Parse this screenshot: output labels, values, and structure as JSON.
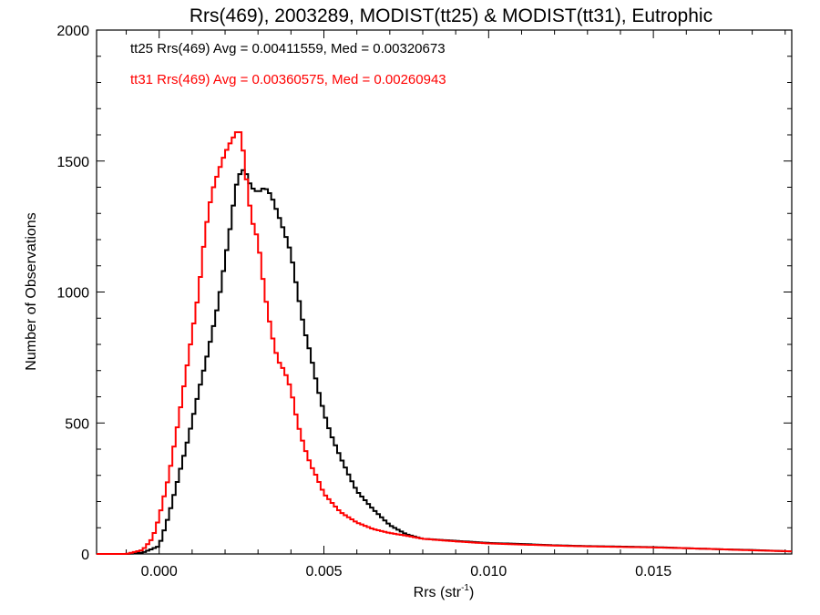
{
  "chart_data": {
    "type": "histogram",
    "title": "Rrs(469), 2003289, MODIST(tt25) & MODIST(tt31), Eutrophic",
    "xlabel": {
      "base": "Rrs (str",
      "sup": "-1",
      "close": ")"
    },
    "ylabel": "Number of Observations",
    "xlim": [
      -0.0019,
      0.0192
    ],
    "ylim": [
      0,
      2000
    ],
    "xticks": [
      0.0,
      0.005,
      0.01,
      0.015
    ],
    "xtick_labels": [
      "0.000",
      "0.005",
      "0.010",
      "0.015"
    ],
    "yticks": [
      0,
      500,
      1000,
      1500,
      2000
    ],
    "ytick_labels": [
      "0",
      "500",
      "1000",
      "1500",
      "2000"
    ],
    "grid": false,
    "annotations": [
      {
        "text": "tt25 Rrs(469) Avg = 0.00411559, Med = 0.00320673",
        "color": "#000000"
      },
      {
        "text": "tt31 Rrs(469) Avg = 0.00360575, Med = 0.00260943",
        "color": "#ff0000"
      }
    ],
    "series": [
      {
        "name": "tt25",
        "color": "#000000",
        "x": [
          -0.0019,
          -0.001,
          -0.0005,
          0.0,
          0.0003,
          0.0006,
          0.0009,
          0.0012,
          0.0015,
          0.0018,
          0.002,
          0.0022,
          0.0023,
          0.0024,
          0.0025,
          0.0026,
          0.0027,
          0.0028,
          0.003,
          0.0032,
          0.0034,
          0.0036,
          0.0038,
          0.004,
          0.0042,
          0.0044,
          0.0046,
          0.0048,
          0.005,
          0.0052,
          0.0055,
          0.0058,
          0.006,
          0.0065,
          0.007,
          0.0075,
          0.008,
          0.009,
          0.01,
          0.011,
          0.012,
          0.013,
          0.014,
          0.015,
          0.016,
          0.017,
          0.018,
          0.0192
        ],
        "y": [
          0,
          0,
          5,
          30,
          150,
          300,
          450,
          620,
          780,
          960,
          1120,
          1280,
          1380,
          1440,
          1460,
          1470,
          1430,
          1400,
          1380,
          1400,
          1370,
          1300,
          1230,
          1150,
          1000,
          860,
          760,
          640,
          540,
          460,
          370,
          290,
          240,
          170,
          110,
          75,
          58,
          50,
          42,
          38,
          33,
          30,
          28,
          26,
          22,
          18,
          15,
          10
        ]
      },
      {
        "name": "tt31",
        "color": "#ff0000",
        "x": [
          -0.0019,
          -0.001,
          -0.0005,
          -0.0002,
          0.0,
          0.0003,
          0.0006,
          0.0009,
          0.0012,
          0.0014,
          0.0016,
          0.0018,
          0.002,
          0.0022,
          0.0024,
          0.0025,
          0.0026,
          0.0028,
          0.003,
          0.0032,
          0.0034,
          0.0036,
          0.0038,
          0.004,
          0.0042,
          0.0044,
          0.0046,
          0.0048,
          0.005,
          0.0055,
          0.006,
          0.0065,
          0.007,
          0.0075,
          0.008,
          0.009,
          0.01,
          0.011,
          0.012,
          0.013,
          0.014,
          0.015,
          0.016,
          0.017,
          0.018,
          0.0192
        ],
        "y": [
          0,
          0,
          15,
          60,
          140,
          300,
          520,
          760,
          1000,
          1230,
          1380,
          1460,
          1530,
          1580,
          1620,
          1600,
          1480,
          1280,
          1200,
          1000,
          850,
          740,
          700,
          630,
          500,
          410,
          340,
          290,
          230,
          160,
          120,
          95,
          80,
          70,
          58,
          48,
          40,
          36,
          32,
          29,
          27,
          25,
          22,
          18,
          14,
          10
        ]
      }
    ]
  }
}
